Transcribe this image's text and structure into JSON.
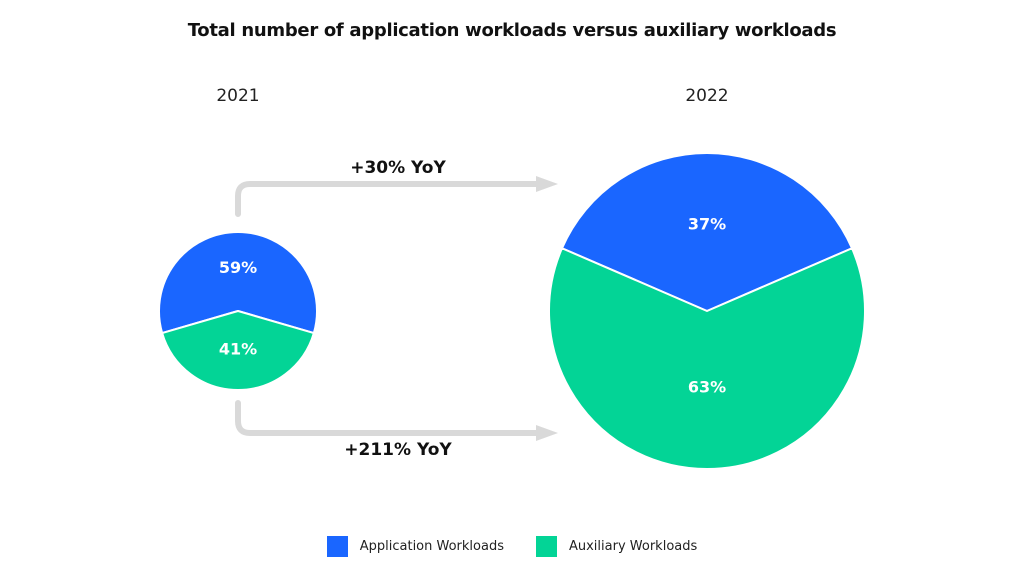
{
  "title": "Total number of application workloads versus auxiliary workloads",
  "colors": {
    "application": "#1a66ff",
    "auxiliary": "#03d496",
    "arrow": "#d9d9d9"
  },
  "years": [
    "2021",
    "2022"
  ],
  "growth": {
    "application": "+30% YoY",
    "auxiliary": "+211% YoY"
  },
  "legend": [
    {
      "label": "Application Workloads",
      "color": "#1a66ff"
    },
    {
      "label": "Auxiliary Workloads",
      "color": "#03d496"
    }
  ],
  "chart_data": [
    {
      "type": "pie",
      "title": "2021",
      "categories": [
        "Application Workloads",
        "Auxiliary Workloads"
      ],
      "values": [
        59,
        41
      ],
      "labels": [
        "59%",
        "41%"
      ]
    },
    {
      "type": "pie",
      "title": "2022",
      "categories": [
        "Application Workloads",
        "Auxiliary Workloads"
      ],
      "values": [
        37,
        63
      ],
      "labels": [
        "37%",
        "63%"
      ]
    }
  ]
}
